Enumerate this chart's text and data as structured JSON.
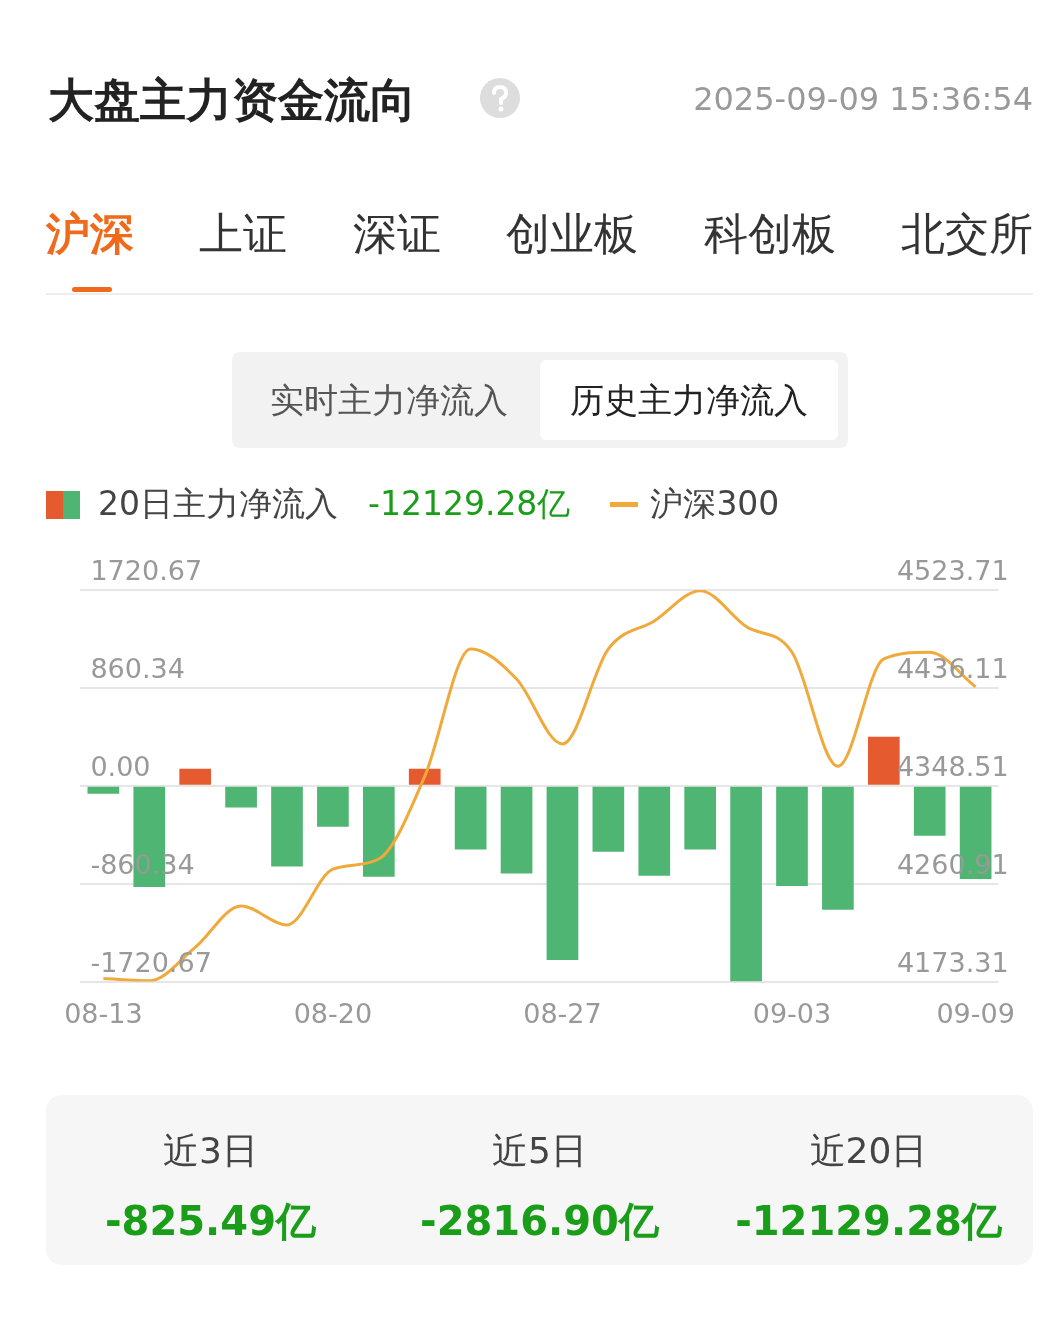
{
  "chart_data": {
    "type": "bar",
    "title": "大盘主力资金流向",
    "subtitle": "2025-09-09 15:36:54",
    "categories": [
      "08-13",
      null,
      null,
      null,
      null,
      "08-20",
      null,
      null,
      null,
      null,
      "08-27",
      null,
      null,
      null,
      null,
      "09-03",
      null,
      null,
      null,
      "09-09"
    ],
    "series": [
      {
        "name": "20日主力净流入",
        "colors": [
          "#4fb573",
          "#4fb573",
          "#e55a2f",
          "#4fb573",
          "#4fb573",
          "#4fb573",
          "#4fb573",
          "#e55a2f",
          "#4fb573",
          "#4fb573",
          "#4fb573",
          "#4fb573",
          "#4fb573",
          "#4fb573",
          "#4fb573",
          "#4fb573",
          "#4fb573",
          "#e55a2f",
          "#4fb573",
          "#4fb573"
        ],
        "values": [
          -70,
          -890,
          150,
          -190,
          -710,
          -360,
          -800,
          150,
          -560,
          -770,
          -1530,
          -580,
          -790,
          -560,
          -1720,
          -880,
          -1090,
          430,
          -440,
          -820
        ]
      },
      {
        "name": "沪深300",
        "type": "line",
        "axis": "y2",
        "color": "#f0a93a",
        "values": [
          4176,
          4174,
          4204,
          4241,
          4224,
          4274,
          4283,
          4357,
          4471,
          4444,
          4386,
          4471,
          4496,
          4523,
          4491,
          4468,
          4366,
          4462,
          4468,
          4437
        ]
      }
    ],
    "ylim": [
      -1720.67,
      1720.67
    ],
    "yticks": [
      -1720.67,
      -860.34,
      {
        "value": 0,
        "label": "0.00"
      },
      860.34,
      1720.67
    ],
    "y2lim": [
      4173.31,
      4523.71
    ],
    "y2ticks": [
      4173.31,
      4260.91,
      4348.51,
      4436.11,
      4523.71
    ],
    "grid": "y",
    "legend": "top left",
    "marker": "none",
    "line_style": "solid",
    "annotations": [
      "沪深",
      "上证",
      "深证",
      "创业板",
      "科创板",
      "北交所",
      "实时主力净流入",
      "历史主力净流入",
      "-12129.28亿",
      "近3日",
      "近5日",
      "近20日",
      "-825.49亿",
      "-2816.90亿",
      "-12129.28亿"
    ]
  }
}
